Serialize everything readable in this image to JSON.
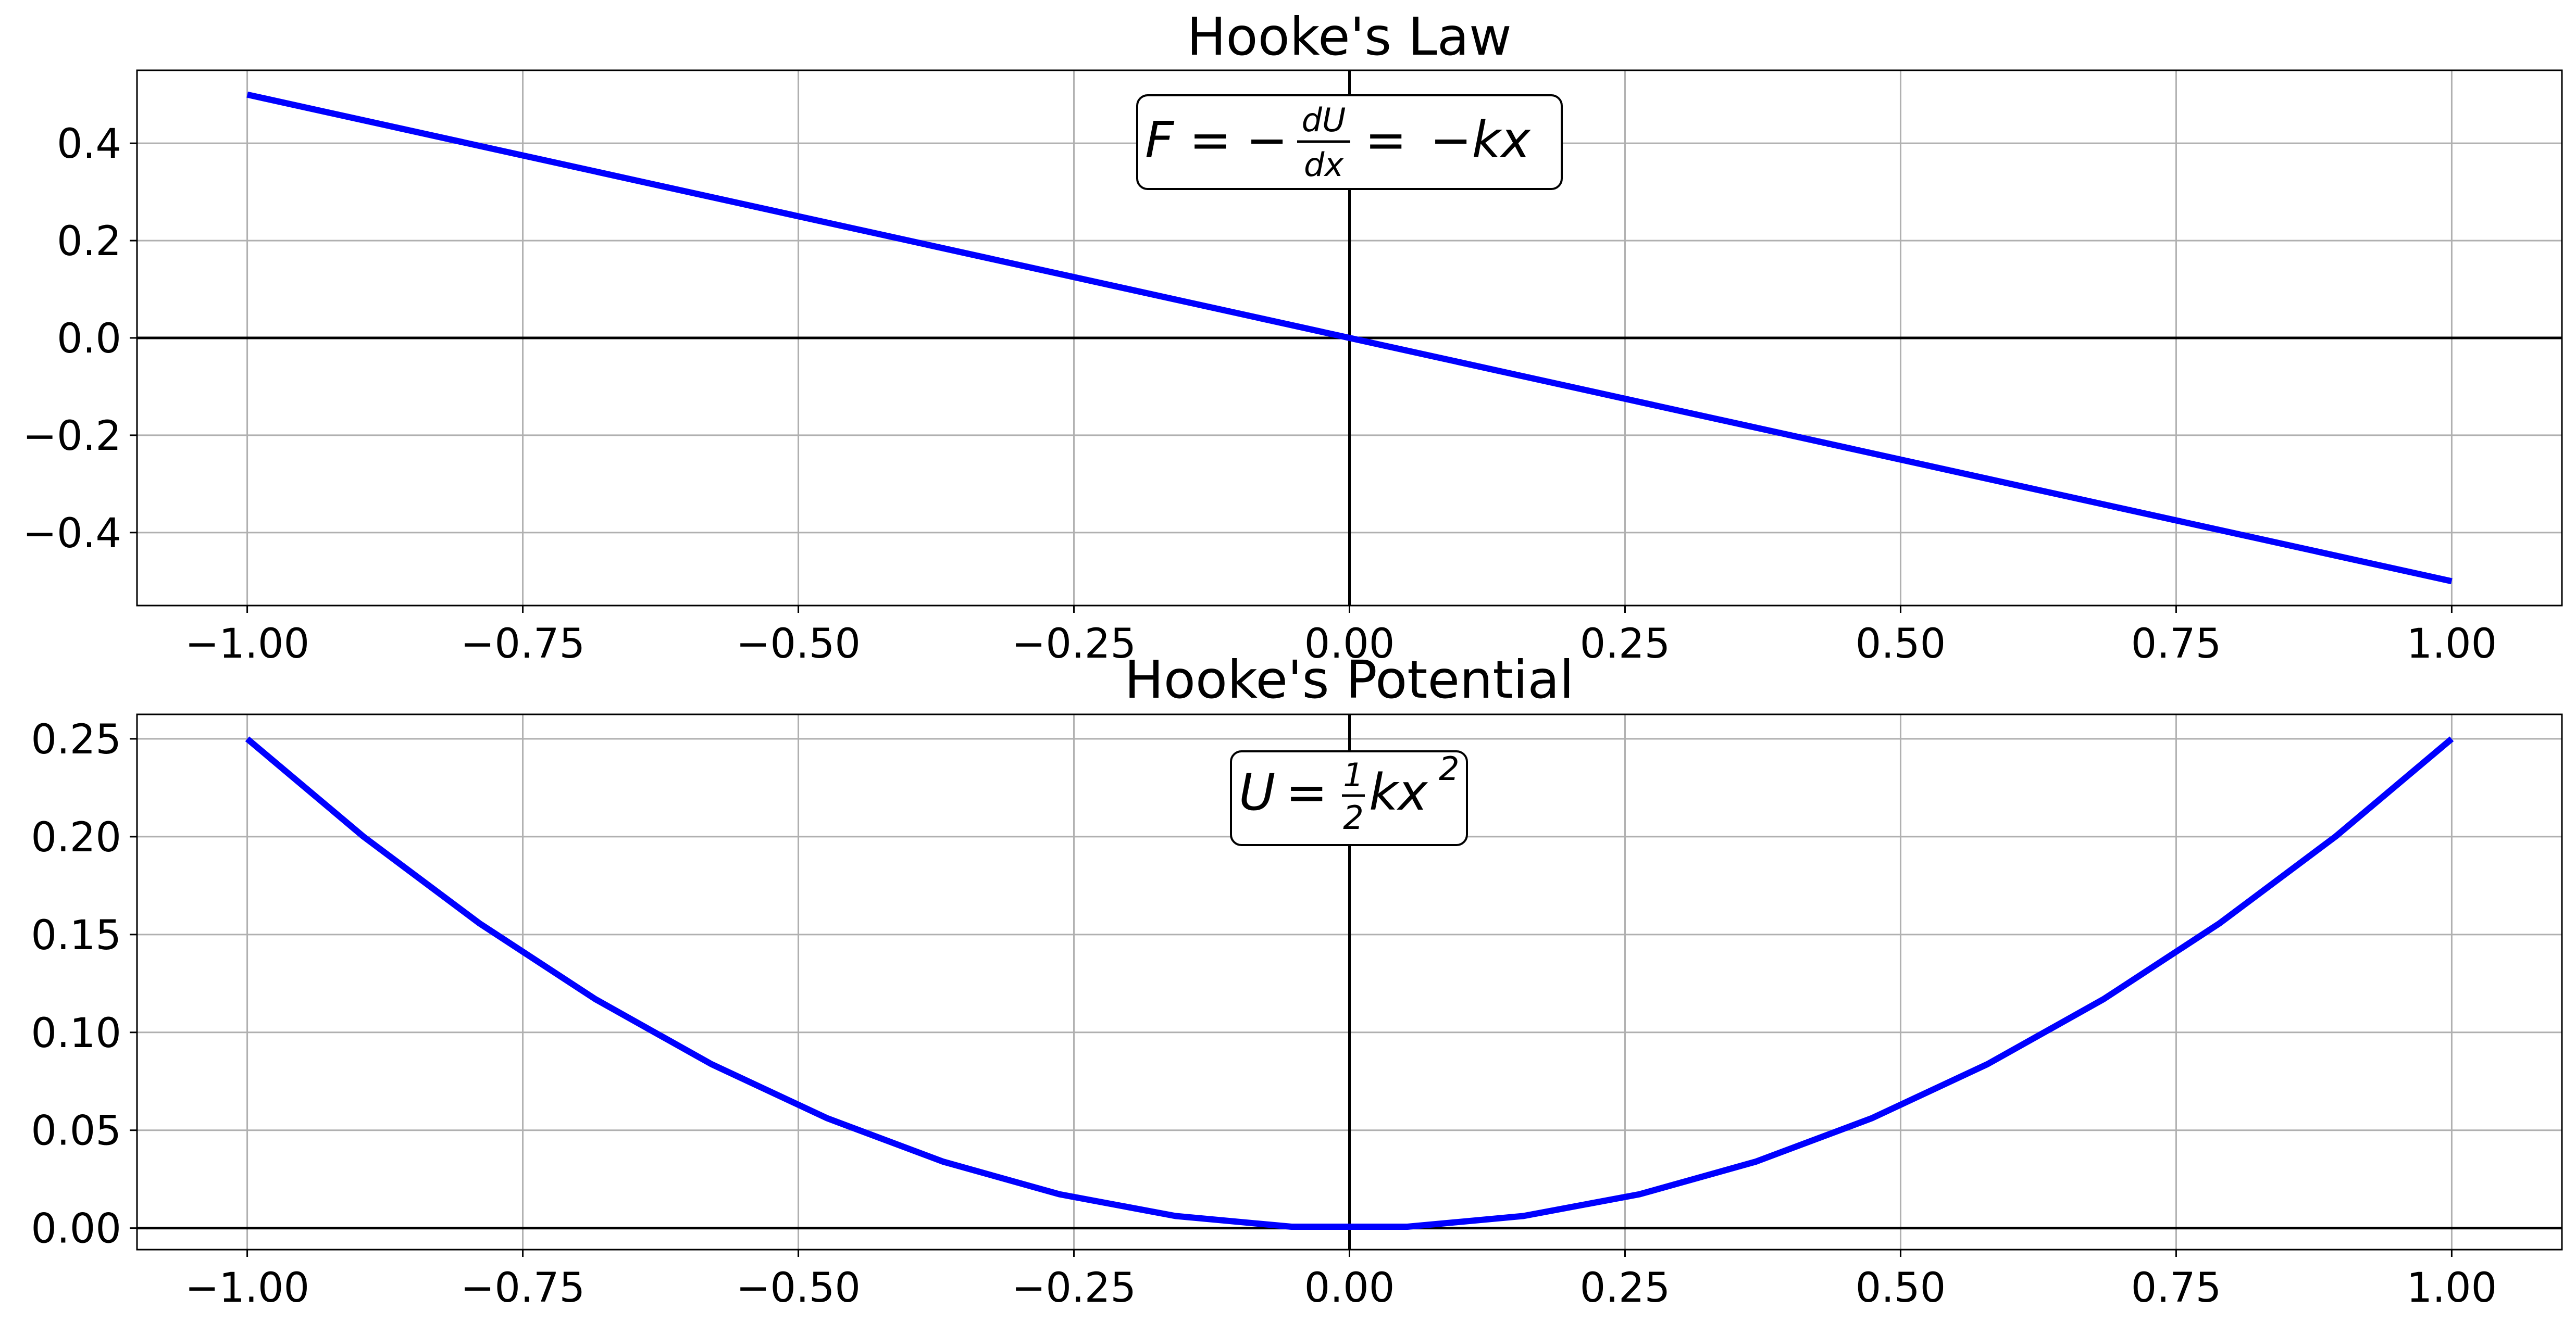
{
  "chart_data": [
    {
      "type": "line",
      "title": "Hooke's Law",
      "xlabel": "",
      "ylabel": "",
      "xlim": [
        -1.1,
        1.1
      ],
      "ylim": [
        -0.55,
        0.55
      ],
      "xticks": [
        "−1.00",
        "−0.75",
        "−0.50",
        "−0.25",
        "0.00",
        "0.25",
        "0.50",
        "0.75",
        "1.00"
      ],
      "xtick_values": [
        -1.0,
        -0.75,
        -0.5,
        -0.25,
        0.0,
        0.25,
        0.5,
        0.75,
        1.0
      ],
      "yticks": [
        "−0.4",
        "−0.2",
        "0.0",
        "0.2",
        "0.4"
      ],
      "ytick_values": [
        -0.4,
        -0.2,
        0.0,
        0.2,
        0.4
      ],
      "grid": true,
      "series": [
        {
          "color": "#0000ff",
          "x": [
            -1.0,
            1.0
          ],
          "y": [
            0.5,
            -0.5
          ]
        }
      ],
      "annotation": {
        "lhs": "F",
        "eq1": "=",
        "minus1": "−",
        "frac_num": "dU",
        "frac_den": "dx",
        "eq2": "=",
        "rhs": "−kx"
      }
    },
    {
      "type": "line",
      "title": "Hooke's Potential",
      "xlabel": "",
      "ylabel": "",
      "xlim": [
        -1.1,
        1.1
      ],
      "ylim": [
        -0.011,
        0.2625
      ],
      "xticks": [
        "−1.00",
        "−0.75",
        "−0.50",
        "−0.25",
        "0.00",
        "0.25",
        "0.50",
        "0.75",
        "1.00"
      ],
      "xtick_values": [
        -1.0,
        -0.75,
        -0.5,
        -0.25,
        0.0,
        0.25,
        0.5,
        0.75,
        1.0
      ],
      "yticks": [
        "0.00",
        "0.05",
        "0.10",
        "0.15",
        "0.20",
        "0.25"
      ],
      "ytick_values": [
        0.0,
        0.05,
        0.1,
        0.15,
        0.2,
        0.25
      ],
      "grid": true,
      "series": [
        {
          "color": "#0000ff",
          "x": [
            -1.0,
            -0.8947,
            -0.7895,
            -0.6842,
            -0.5789,
            -0.4737,
            -0.3684,
            -0.2632,
            -0.1579,
            -0.0526,
            0.0526,
            0.1579,
            0.2632,
            0.3684,
            0.4737,
            0.5789,
            0.6842,
            0.7895,
            0.8947,
            1.0
          ],
          "y": [
            0.25,
            0.2001,
            0.1558,
            0.117,
            0.0838,
            0.0561,
            0.0339,
            0.0173,
            0.0062,
            0.0007,
            0.0007,
            0.0062,
            0.0173,
            0.0339,
            0.0561,
            0.0838,
            0.117,
            0.1558,
            0.2001,
            0.25
          ]
        }
      ],
      "annotation": {
        "lhs": "U",
        "eq1": "=",
        "frac_num": "1",
        "frac_den": "2",
        "rhs": "kx",
        "exp": "2"
      }
    }
  ]
}
